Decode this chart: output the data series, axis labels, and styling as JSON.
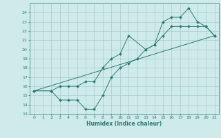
{
  "title": "",
  "xlabel": "Humidex (Indice chaleur)",
  "xlim": [
    -0.5,
    21.5
  ],
  "ylim": [
    13,
    25
  ],
  "yticks": [
    13,
    14,
    15,
    16,
    17,
    18,
    19,
    20,
    21,
    22,
    23,
    24
  ],
  "xticks": [
    0,
    1,
    2,
    3,
    4,
    5,
    6,
    7,
    8,
    9,
    10,
    11,
    12,
    13,
    14,
    15,
    16,
    17,
    18,
    19,
    20,
    21
  ],
  "line_color": "#2d7a72",
  "bg_color": "#ceeaea",
  "grid_color": "#aacccc",
  "line1_x": [
    0,
    21
  ],
  "line1_y": [
    15.5,
    21.5
  ],
  "line2_x": [
    0,
    2,
    3,
    4,
    5,
    6,
    7,
    8,
    9,
    10,
    11,
    13,
    14,
    15,
    16,
    17,
    18,
    19,
    20,
    21
  ],
  "line2_y": [
    15.5,
    15.5,
    16.0,
    16.0,
    16.0,
    16.5,
    16.5,
    18.0,
    19.0,
    19.5,
    21.5,
    20.0,
    20.5,
    23.0,
    23.5,
    23.5,
    24.5,
    23.0,
    22.5,
    21.5
  ],
  "line3_x": [
    0,
    2,
    3,
    4,
    5,
    6,
    7,
    8,
    9,
    10,
    11,
    12,
    13,
    14,
    15,
    16,
    17,
    18,
    19,
    20,
    21
  ],
  "line3_y": [
    15.5,
    15.5,
    14.5,
    14.5,
    14.5,
    13.5,
    13.5,
    15.0,
    17.0,
    18.0,
    18.5,
    19.0,
    20.0,
    20.5,
    21.5,
    22.5,
    22.5,
    22.5,
    22.5,
    22.5,
    21.5
  ]
}
